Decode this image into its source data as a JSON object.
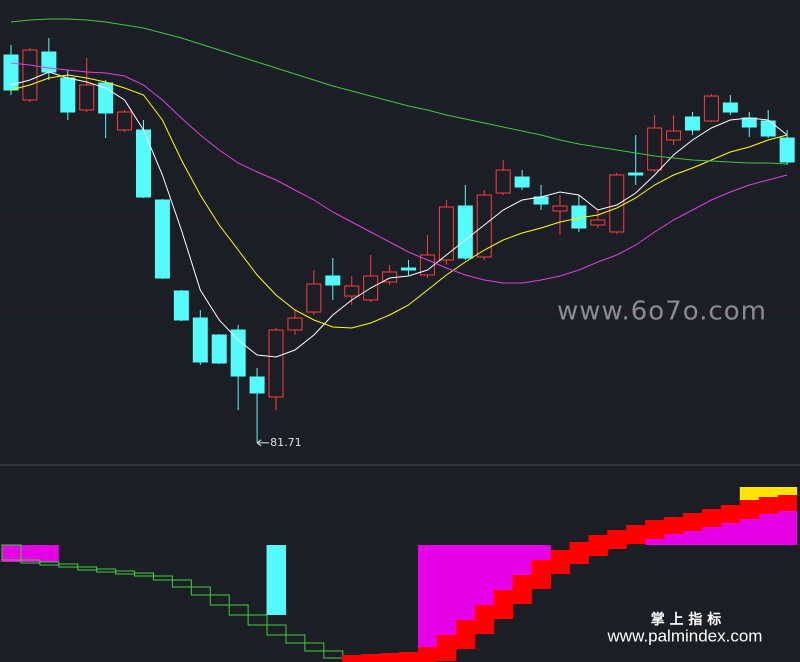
{
  "chart_data": [
    {
      "type": "candlestick",
      "open": [
        101.1,
        98.85,
        101.25,
        99.95,
        98.35,
        99.7,
        97.35,
        97.35,
        93.85,
        89.3,
        87.95,
        87.1,
        87.35,
        85.0,
        84.0,
        87.35,
        88.25,
        90.05,
        89.05,
        88.85,
        89.75,
        90.45,
        90.1,
        90.85,
        93.55,
        91.0,
        94.2,
        95.0,
        94.0,
        93.3,
        93.55,
        92.6,
        92.25,
        95.2,
        95.35,
        96.85,
        98.0,
        97.8,
        98.7,
        97.95,
        97.8,
        96.95
      ],
      "high": [
        101.6,
        101.45,
        101.95,
        100.35,
        100.95,
        99.85,
        98.35,
        97.85,
        93.9,
        89.35,
        88.35,
        87.15,
        87.6,
        85.45,
        87.45,
        88.35,
        90.35,
        90.95,
        90.05,
        91.1,
        90.6,
        90.85,
        92.1,
        93.85,
        94.6,
        94.35,
        95.85,
        95.35,
        94.6,
        94.1,
        94.1,
        93.35,
        95.2,
        97.1,
        98.1,
        98.1,
        98.25,
        99.15,
        99.1,
        98.25,
        98.35,
        97.35
      ],
      "low": [
        99.1,
        98.75,
        99.85,
        97.85,
        98.25,
        96.95,
        97.25,
        93.95,
        89.9,
        87.8,
        85.6,
        85.65,
        83.35,
        81.71,
        83.35,
        87.1,
        88.1,
        88.85,
        88.6,
        88.75,
        89.6,
        90.1,
        89.95,
        90.6,
        90.85,
        90.85,
        94.1,
        94.35,
        93.35,
        92.1,
        92.25,
        92.45,
        92.15,
        94.6,
        95.25,
        96.6,
        97.1,
        97.75,
        98.1,
        97.0,
        96.95,
        95.6
      ],
      "close": [
        99.35,
        101.35,
        100.25,
        98.25,
        99.6,
        98.2,
        98.25,
        94.0,
        89.95,
        87.85,
        85.75,
        85.7,
        85.05,
        84.2,
        87.35,
        87.95,
        89.65,
        89.6,
        89.55,
        90.05,
        90.25,
        90.35,
        91.1,
        93.5,
        90.95,
        94.1,
        95.35,
        94.5,
        93.65,
        93.55,
        92.45,
        92.85,
        95.1,
        95.1,
        97.45,
        97.3,
        97.35,
        99.05,
        98.25,
        97.5,
        97.05,
        95.75
      ],
      "up_color": "#ff3c3c",
      "down_color": "#54fcfc",
      "lines": [
        {
          "color": "#ffffff",
          "values": [
            99.6,
            99.85,
            100.25,
            99.95,
            99.75,
            99.45,
            98.85,
            97.35,
            95.1,
            92.35,
            89.35,
            87.85,
            86.85,
            86.1,
            86.0,
            86.35,
            87.1,
            88.1,
            88.85,
            89.45,
            89.95,
            90.05,
            90.35,
            91.1,
            91.85,
            92.6,
            93.35,
            93.85,
            94.0,
            94.25,
            94.1,
            93.35,
            93.6,
            94.2,
            95.1,
            96.1,
            96.85,
            97.45,
            97.85,
            97.95,
            97.85,
            97.1
          ]
        },
        {
          "color": "#ffff00",
          "values": [
            99.35,
            99.6,
            99.95,
            100.1,
            99.95,
            99.75,
            99.45,
            99.1,
            97.85,
            95.85,
            94.1,
            92.6,
            91.35,
            90.1,
            89.1,
            88.35,
            87.85,
            87.5,
            87.45,
            87.7,
            88.1,
            88.6,
            89.35,
            90.1,
            90.75,
            91.35,
            91.85,
            92.2,
            92.45,
            92.75,
            92.95,
            93.1,
            93.45,
            93.95,
            94.6,
            95.1,
            95.45,
            95.85,
            96.25,
            96.5,
            96.85,
            97.1
          ]
        },
        {
          "color": "#e040e0",
          "values": [
            100.7,
            100.6,
            100.45,
            100.35,
            100.25,
            100.2,
            100.05,
            99.6,
            98.85,
            97.95,
            97.1,
            96.35,
            95.7,
            95.25,
            94.85,
            94.35,
            93.85,
            93.25,
            92.75,
            92.25,
            91.75,
            91.25,
            90.85,
            90.45,
            90.1,
            89.85,
            89.7,
            89.7,
            89.85,
            90.05,
            90.35,
            90.75,
            91.1,
            91.6,
            92.25,
            92.85,
            93.35,
            93.85,
            94.25,
            94.6,
            94.85,
            95.1
          ]
        },
        {
          "color": "#3cc83c",
          "values": [
            102.75,
            102.85,
            102.9,
            102.9,
            102.85,
            102.75,
            102.6,
            102.45,
            102.2,
            101.95,
            101.65,
            101.35,
            101.05,
            100.75,
            100.45,
            100.15,
            99.85,
            99.55,
            99.3,
            99.05,
            98.8,
            98.55,
            98.35,
            98.1,
            97.9,
            97.7,
            97.5,
            97.3,
            97.1,
            96.85,
            96.65,
            96.5,
            96.35,
            96.2,
            96.05,
            95.95,
            95.85,
            95.8,
            95.75,
            95.7,
            95.7,
            95.65
          ]
        }
      ],
      "ylim": [
        80.75,
        103.85
      ],
      "grid": true,
      "ygrid": [
        102.85,
        100.35,
        97.95,
        95.55,
        93.1,
        90.65,
        88.2,
        85.75,
        83.3
      ]
    },
    {
      "type": "indicator",
      "ylim": [
        -117,
        79
      ],
      "level": {
        "rise_color": "#ff0000",
        "fall_color": "#3cd23c",
        "values": [
          -15,
          -17,
          -19,
          -22,
          -24,
          -26,
          -28,
          -31,
          -35,
          -42,
          -50,
          -60,
          -70,
          -80,
          -90,
          -98,
          -106,
          -113,
          -110,
          -109,
          -108,
          -107,
          -102,
          -90,
          -75,
          -60,
          -45,
          -30,
          -15,
          -5,
          3,
          10,
          15,
          20,
          25,
          28,
          32,
          36,
          40,
          45,
          48,
          50
        ]
      },
      "magenta": {
        "color": "#e600e6",
        "values": [
          -17,
          -17,
          -17,
          null,
          null,
          null,
          null,
          null,
          null,
          null,
          null,
          null,
          null,
          null,
          null,
          null,
          null,
          null,
          null,
          null,
          null,
          null,
          -102,
          -90,
          -75,
          -60,
          -45,
          -30,
          -15,
          null,
          null,
          null,
          null,
          null,
          20,
          22,
          25,
          28,
          30,
          32,
          35,
          36
        ]
      },
      "cyan": {
        "color": "#54fcfc",
        "values": [
          null,
          null,
          null,
          null,
          null,
          null,
          null,
          null,
          null,
          null,
          null,
          null,
          null,
          null,
          -70,
          null,
          null,
          null,
          null,
          null,
          null,
          null,
          null,
          null,
          null,
          null,
          null,
          null,
          null,
          null,
          null,
          null,
          null,
          null,
          null,
          null,
          null,
          null,
          null,
          null,
          null,
          null
        ]
      },
      "yellow": {
        "color": "#ffe600",
        "values": [
          null,
          null,
          null,
          null,
          null,
          null,
          null,
          null,
          null,
          null,
          null,
          null,
          null,
          null,
          null,
          null,
          null,
          null,
          null,
          null,
          null,
          null,
          null,
          null,
          null,
          null,
          null,
          null,
          null,
          null,
          null,
          null,
          null,
          null,
          null,
          null,
          null,
          null,
          null,
          58,
          58,
          58
        ]
      }
    }
  ],
  "watermarks": [
    "www.6o7o.com",
    "掌 上 指 标",
    "www.palmindex.com"
  ]
}
